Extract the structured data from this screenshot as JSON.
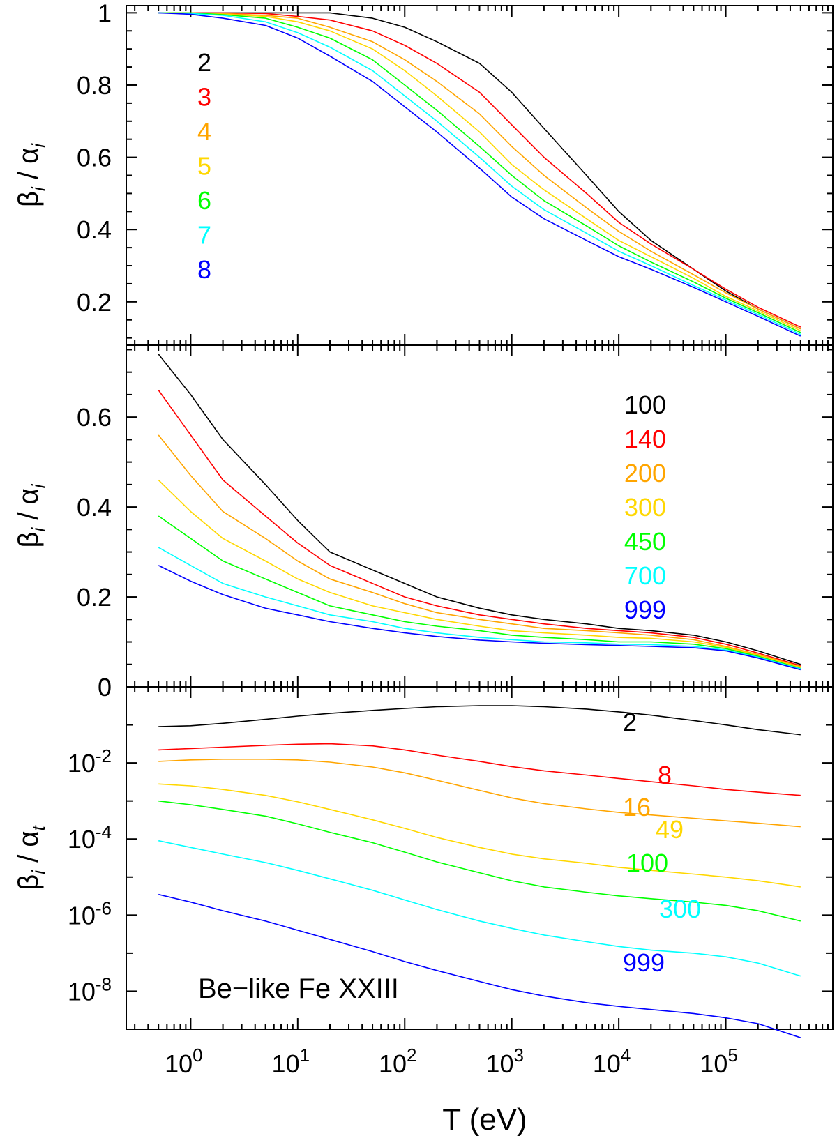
{
  "chart_data": [
    {
      "type": "line",
      "x_scale": "log",
      "xlim": [
        0.25,
        1000000
      ],
      "ylim": [
        0.08,
        1.02
      ],
      "ylabel": "β i / α i",
      "yticks": [
        0.2,
        0.4,
        0.6,
        0.8,
        1
      ],
      "ytick_labels": [
        "0.2",
        "0.4",
        "0.6",
        "0.8",
        "1"
      ],
      "legend_position": "upper-left",
      "x": [
        0.5,
        1,
        2,
        5,
        10,
        20,
        50,
        100,
        200,
        500,
        1000,
        2000,
        5000,
        10000,
        20000,
        50000,
        100000,
        200000,
        500000
      ],
      "series": [
        {
          "name": "2",
          "color": "#000000",
          "values": [
            1.0,
            1.0,
            1.0,
            1.0,
            1.0,
            1.0,
            0.985,
            0.96,
            0.92,
            0.86,
            0.78,
            0.68,
            0.55,
            0.45,
            0.37,
            0.29,
            0.23,
            0.18,
            0.125
          ]
        },
        {
          "name": "3",
          "color": "#ff0000",
          "values": [
            1.0,
            1.0,
            1.0,
            0.998,
            0.99,
            0.98,
            0.95,
            0.91,
            0.86,
            0.78,
            0.69,
            0.6,
            0.5,
            0.42,
            0.36,
            0.29,
            0.235,
            0.185,
            0.13
          ]
        },
        {
          "name": "4",
          "color": "#ffa500",
          "values": [
            1.0,
            1.0,
            0.998,
            0.993,
            0.985,
            0.96,
            0.92,
            0.87,
            0.81,
            0.72,
            0.63,
            0.55,
            0.46,
            0.395,
            0.34,
            0.275,
            0.225,
            0.18,
            0.125
          ]
        },
        {
          "name": "5",
          "color": "#ffd700",
          "values": [
            1.0,
            1.0,
            0.996,
            0.99,
            0.975,
            0.95,
            0.9,
            0.84,
            0.77,
            0.67,
            0.58,
            0.51,
            0.43,
            0.37,
            0.325,
            0.265,
            0.215,
            0.175,
            0.12
          ]
        },
        {
          "name": "6",
          "color": "#00ff00",
          "values": [
            1.0,
            1.0,
            0.995,
            0.985,
            0.96,
            0.93,
            0.87,
            0.8,
            0.73,
            0.63,
            0.55,
            0.48,
            0.41,
            0.355,
            0.31,
            0.255,
            0.21,
            0.17,
            0.115
          ]
        },
        {
          "name": "7",
          "color": "#00ffff",
          "values": [
            1.0,
            0.998,
            0.993,
            0.975,
            0.945,
            0.905,
            0.84,
            0.77,
            0.7,
            0.6,
            0.52,
            0.455,
            0.39,
            0.34,
            0.3,
            0.245,
            0.205,
            0.165,
            0.11
          ]
        },
        {
          "name": "8",
          "color": "#0000ff",
          "values": [
            1.0,
            0.996,
            0.985,
            0.965,
            0.93,
            0.88,
            0.81,
            0.74,
            0.67,
            0.57,
            0.49,
            0.43,
            0.37,
            0.325,
            0.29,
            0.24,
            0.2,
            0.16,
            0.105
          ]
        }
      ]
    },
    {
      "type": "line",
      "x_scale": "log",
      "xlim": [
        0.25,
        1000000
      ],
      "ylim": [
        0,
        0.76
      ],
      "ylabel": "β i / α i",
      "yticks": [
        0.2,
        0.4,
        0.6
      ],
      "ytick_labels": [
        "0.2",
        "0.4",
        "0.6"
      ],
      "legend_position": "upper-right",
      "x": [
        0.5,
        1,
        2,
        5,
        10,
        20,
        50,
        100,
        200,
        500,
        1000,
        2000,
        5000,
        10000,
        20000,
        50000,
        100000,
        200000,
        500000
      ],
      "series": [
        {
          "name": "100",
          "color": "#000000",
          "values": [
            0.74,
            0.65,
            0.55,
            0.45,
            0.37,
            0.3,
            0.26,
            0.23,
            0.2,
            0.175,
            0.16,
            0.15,
            0.14,
            0.13,
            0.125,
            0.115,
            0.1,
            0.08,
            0.05
          ]
        },
        {
          "name": "140",
          "color": "#ff0000",
          "values": [
            0.66,
            0.56,
            0.46,
            0.38,
            0.32,
            0.27,
            0.23,
            0.2,
            0.18,
            0.16,
            0.15,
            0.14,
            0.13,
            0.125,
            0.12,
            0.11,
            0.095,
            0.075,
            0.047
          ]
        },
        {
          "name": "200",
          "color": "#ffa500",
          "values": [
            0.56,
            0.47,
            0.39,
            0.33,
            0.28,
            0.24,
            0.21,
            0.185,
            0.165,
            0.15,
            0.14,
            0.13,
            0.125,
            0.12,
            0.115,
            0.105,
            0.09,
            0.072,
            0.045
          ]
        },
        {
          "name": "300",
          "color": "#ffd700",
          "values": [
            0.46,
            0.39,
            0.33,
            0.28,
            0.24,
            0.21,
            0.18,
            0.165,
            0.15,
            0.135,
            0.125,
            0.12,
            0.115,
            0.11,
            0.108,
            0.1,
            0.088,
            0.07,
            0.043
          ]
        },
        {
          "name": "450",
          "color": "#00ff00",
          "values": [
            0.38,
            0.33,
            0.28,
            0.24,
            0.21,
            0.18,
            0.16,
            0.145,
            0.135,
            0.125,
            0.115,
            0.11,
            0.105,
            0.1,
            0.1,
            0.095,
            0.085,
            0.068,
            0.041
          ]
        },
        {
          "name": "700",
          "color": "#00ffff",
          "values": [
            0.31,
            0.27,
            0.23,
            0.2,
            0.18,
            0.16,
            0.145,
            0.13,
            0.12,
            0.11,
            0.105,
            0.1,
            0.098,
            0.095,
            0.094,
            0.09,
            0.082,
            0.066,
            0.04
          ]
        },
        {
          "name": "999",
          "color": "#0000ff",
          "values": [
            0.27,
            0.235,
            0.205,
            0.175,
            0.16,
            0.145,
            0.13,
            0.12,
            0.112,
            0.104,
            0.1,
            0.097,
            0.094,
            0.092,
            0.09,
            0.087,
            0.08,
            0.064,
            0.038
          ]
        }
      ]
    },
    {
      "type": "line",
      "x_scale": "log",
      "y_scale": "log",
      "xlim": [
        0.25,
        1000000
      ],
      "ylim": [
        1e-09,
        1
      ],
      "xlabel": "T (eV)",
      "ylabel": "β i / α t",
      "x_tick_labels": [
        "10^0",
        "10^1",
        "10^2",
        "10^3",
        "10^4",
        "10^5"
      ],
      "y_tick_labels": [
        "0",
        "10^-2",
        "10^-4",
        "10^-6",
        "10^-8"
      ],
      "annotation": "Be−like Fe XXIII",
      "legend_position": "right, next to each curve",
      "x": [
        0.5,
        1,
        2,
        5,
        10,
        20,
        50,
        100,
        200,
        500,
        1000,
        2000,
        5000,
        10000,
        20000,
        50000,
        100000,
        200000,
        500000
      ],
      "series": [
        {
          "name": "2",
          "color": "#000000",
          "values": [
            0.09,
            0.095,
            0.11,
            0.14,
            0.17,
            0.2,
            0.24,
            0.27,
            0.3,
            0.32,
            0.32,
            0.3,
            0.26,
            0.22,
            0.18,
            0.13,
            0.1,
            0.075,
            0.055
          ]
        },
        {
          "name": "8",
          "color": "#ff0000",
          "values": [
            0.022,
            0.024,
            0.026,
            0.029,
            0.031,
            0.032,
            0.028,
            0.022,
            0.016,
            0.011,
            0.008,
            0.0062,
            0.0048,
            0.0039,
            0.0032,
            0.0025,
            0.002,
            0.0017,
            0.0014
          ]
        },
        {
          "name": "16",
          "color": "#ffa500",
          "values": [
            0.011,
            0.012,
            0.0125,
            0.0125,
            0.012,
            0.0105,
            0.0078,
            0.0055,
            0.0035,
            0.0019,
            0.0012,
            0.00085,
            0.00062,
            0.0005,
            0.00043,
            0.00035,
            0.0003,
            0.00026,
            0.00021
          ]
        },
        {
          "name": "49",
          "color": "#ffd700",
          "values": [
            0.0028,
            0.0025,
            0.002,
            0.0014,
            0.00095,
            0.0006,
            0.00032,
            0.00019,
            0.00011,
            6e-05,
            4e-05,
            3e-05,
            2.3e-05,
            1.8e-05,
            1.5e-05,
            1.2e-05,
            1e-05,
            8e-06,
            5.5e-06
          ]
        },
        {
          "name": "100",
          "color": "#00ff00",
          "values": [
            0.001,
            0.0008,
            0.0006,
            0.0004,
            0.00025,
            0.00015,
            8e-05,
            4.5e-05,
            2.5e-05,
            1.3e-05,
            8e-06,
            5.5e-06,
            4e-06,
            3.2e-06,
            2.7e-06,
            2.2e-06,
            1.8e-06,
            1.3e-06,
            7e-07
          ]
        },
        {
          "name": "300",
          "color": "#00ffff",
          "values": [
            9e-05,
            6e-05,
            4e-05,
            2.4e-05,
            1.5e-05,
            9e-06,
            4.5e-06,
            2.5e-06,
            1.4e-06,
            7e-07,
            4.5e-07,
            3e-07,
            2e-07,
            1.5e-07,
            1.2e-07,
            1e-07,
            8e-08,
            5.5e-08,
            2.5e-08
          ]
        },
        {
          "name": "999",
          "color": "#0000ff",
          "values": [
            3.5e-06,
            2.2e-06,
            1.3e-06,
            7e-07,
            4e-07,
            2.3e-07,
            1.1e-07,
            6e-08,
            3.5e-08,
            1.8e-08,
            1.1e-08,
            7.5e-09,
            5e-09,
            4e-09,
            3.3e-09,
            2.6e-09,
            2e-09,
            1.4e-09,
            6e-10
          ]
        }
      ]
    }
  ]
}
